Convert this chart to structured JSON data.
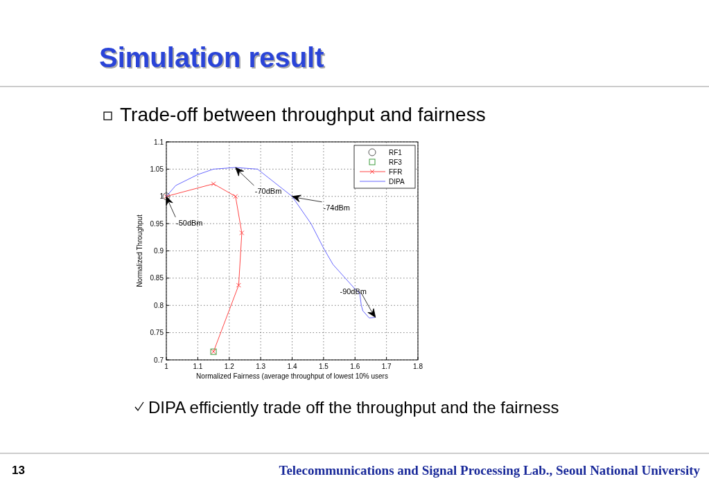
{
  "chart_data": {
    "type": "line",
    "title": "Simulation result",
    "subtitle": "Trade-off between throughput and fairness",
    "xlabel": "Normalized Fairness (average throughput of lowest 10% users",
    "ylabel": "Normalized Throughput",
    "xlim": [
      1,
      1.8
    ],
    "xticks": [
      1,
      1.1,
      1.2,
      1.3,
      1.4,
      1.5,
      1.6,
      1.7,
      1.8
    ],
    "ylim": [
      0.7,
      1.1
    ],
    "yticks": [
      0.7,
      0.75,
      0.8,
      0.85,
      0.9,
      0.95,
      1,
      1.05,
      1.1
    ],
    "grid": true,
    "legend": "top right",
    "series": [
      {
        "name": "RF1",
        "type": "scatter",
        "marker": "circle",
        "color": "#555555",
        "x": [
          1
        ],
        "values": [
          1
        ]
      },
      {
        "name": "RF3",
        "type": "scatter",
        "marker": "square",
        "color": "#3a9a3a",
        "x": [
          1.15
        ],
        "values": [
          0.715
        ]
      },
      {
        "name": "FFR",
        "marker": "cross",
        "color": "#ff4444",
        "x": [
          1,
          1.15,
          1.22,
          1.24,
          1.23,
          1.15
        ],
        "values": [
          1,
          1.023,
          1,
          0.933,
          0.837,
          0.715
        ]
      },
      {
        "name": "DIPA",
        "marker": "none",
        "color": "#6666ff",
        "x": [
          1,
          1.03,
          1.1,
          1.15,
          1.22,
          1.29,
          1.4,
          1.46,
          1.5,
          1.53,
          1.6,
          1.615,
          1.62,
          1.625,
          1.645,
          1.665
        ],
        "values": [
          1,
          1.02,
          1.04,
          1.05,
          1.053,
          1.05,
          1,
          0.95,
          0.905,
          0.875,
          0.83,
          0.822,
          0.8,
          0.79,
          0.777,
          0.778
        ]
      }
    ],
    "annotations": [
      {
        "text": "-50dBm",
        "x": 1,
        "y": 1
      },
      {
        "text": "-70dBm",
        "x": 1.22,
        "y": 1.053
      },
      {
        "text": "-74dBm",
        "x": 1.4,
        "y": 1
      },
      {
        "text": "-90dBm",
        "x": 1.665,
        "y": 0.778
      },
      "DIPA efficiently trade off the throughput and the fairness",
      "13",
      "Telecommunications and Signal Processing Lab., Seoul National University"
    ]
  }
}
